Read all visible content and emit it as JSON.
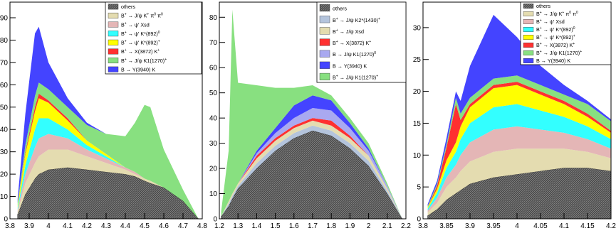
{
  "chart_data": [
    {
      "type": "area",
      "stacked": true,
      "grid": false,
      "legend_position": "top-right",
      "xlim": [
        3.8,
        4.8
      ],
      "ylim": [
        0,
        97
      ],
      "x_ticks": [
        "3.8",
        "3.9",
        "4",
        "4.1",
        "4.2",
        "4.3",
        "4.4",
        "4.5",
        "4.6",
        "4.7",
        "4.8"
      ],
      "y_ticks": [
        "0",
        "10",
        "20",
        "30",
        "40",
        "50",
        "60",
        "70",
        "80",
        "90"
      ],
      "x": [
        3.84,
        3.88,
        3.93,
        3.95,
        4.0,
        4.1,
        4.2,
        4.3,
        4.4,
        4.45,
        4.5,
        4.53,
        4.6,
        4.7,
        4.78
      ],
      "series": [
        {
          "name": "others",
          "color": "#555555",
          "values": [
            2,
            11,
            18,
            20,
            22,
            23,
            22,
            21,
            20,
            19,
            17,
            16,
            14,
            8,
            0
          ]
        },
        {
          "name": "B<sup>+</sup> → J/ψ K<sup>+</sup> π<sup>0</sup> π<sup>0</sup>",
          "color": "#e4dcb0",
          "values": [
            1,
            5,
            7,
            8,
            9,
            8,
            6,
            4,
            2,
            1,
            1,
            1,
            0,
            0,
            0
          ]
        },
        {
          "name": "B<sup>+</sup> → ψ' Xsd",
          "color": "#e4b6b6",
          "values": [
            1,
            4,
            7,
            8,
            7,
            5,
            3,
            2,
            1,
            1,
            0,
            0,
            0,
            0,
            0
          ]
        },
        {
          "name": "B<sup>+</sup> → ψ' K*(892)<sup>0</sup>",
          "color": "#33ffff",
          "values": [
            1,
            4,
            8,
            9,
            7,
            4,
            2,
            1,
            0,
            0,
            0,
            0,
            0,
            0,
            0
          ]
        },
        {
          "name": "B<sup>+</sup> → ψ' K*(892)<sup>+</sup>",
          "color": "#ffff00",
          "values": [
            1,
            5,
            8,
            9,
            7,
            4,
            2,
            1,
            0,
            0,
            0,
            0,
            0,
            0,
            0
          ]
        },
        {
          "name": "B<sup>+</sup> → X(3872) K<sup>+</sup>",
          "color": "#ff3030",
          "values": [
            0,
            1,
            2,
            2,
            1,
            1,
            0,
            0,
            0,
            0,
            0,
            0,
            0,
            0,
            0
          ]
        },
        {
          "name": "B<sup>+</sup> → J/ψ K1(1270)<sup>+</sup>",
          "color": "#88e080",
          "values": [
            1,
            3,
            5,
            5,
            5,
            5,
            7,
            9,
            14,
            22,
            33,
            33,
            17,
            5,
            0
          ]
        },
        {
          "name": "B → Y(3940) K",
          "color": "#4444ff",
          "values": [
            2,
            14,
            28,
            25,
            12,
            4,
            1,
            0,
            0,
            0,
            0,
            0,
            0,
            0,
            0
          ]
        }
      ]
    },
    {
      "type": "area",
      "stacked": true,
      "grid": false,
      "legend_position": "top-right",
      "xlim": [
        1.2,
        2.2
      ],
      "ylim": [
        0,
        86
      ],
      "x_ticks": [
        "1.2",
        "1.3",
        "1.4",
        "1.5",
        "1.6",
        "1.7",
        "1.8",
        "1.9",
        "2",
        "2.1",
        "2.2"
      ],
      "y_ticks": [
        "0",
        "10",
        "20",
        "30",
        "40",
        "50",
        "60",
        "70",
        "80"
      ],
      "x": [
        1.21,
        1.25,
        1.27,
        1.3,
        1.4,
        1.5,
        1.6,
        1.7,
        1.8,
        1.9,
        2.0,
        2.1,
        2.18
      ],
      "series": [
        {
          "name": "others",
          "color": "#555555",
          "values": [
            1,
            5,
            8,
            12,
            20,
            27,
            32,
            35,
            33,
            28,
            21,
            10,
            0
          ]
        },
        {
          "name": "B<sup>+</sup> → J/ψ K2*(1430)<sup>+</sup>",
          "color": "#b4c4dc",
          "values": [
            0,
            1,
            1,
            1,
            2,
            2,
            2,
            2,
            2,
            2,
            2,
            1,
            0
          ]
        },
        {
          "name": "B<sup>+</sup> → J/ψ Xsd",
          "color": "#e4dcb0",
          "values": [
            0,
            1,
            1,
            1,
            2,
            2,
            2,
            2,
            2,
            2,
            2,
            1,
            0
          ]
        },
        {
          "name": "B<sup>+</sup> → X(3872) K<sup>+</sup>",
          "color": "#ff3030",
          "values": [
            0,
            0,
            0,
            0,
            1,
            1,
            1,
            1,
            2,
            1,
            0,
            0,
            0
          ]
        },
        {
          "name": "B → J/ψ K1(1270)<sup>0</sup>",
          "color": "#a9a9f0",
          "values": [
            0,
            0,
            0,
            0,
            1,
            2,
            3,
            4,
            4,
            3,
            2,
            1,
            0
          ]
        },
        {
          "name": "B → Y(3940) K",
          "color": "#4444ff",
          "values": [
            0,
            0,
            0,
            0,
            1,
            2,
            5,
            5,
            4,
            2,
            1,
            0,
            0
          ]
        },
        {
          "name": "B<sup>+</sup> → J/ψ K1(1270)<sup>+</sup>",
          "color": "#88e080",
          "values": [
            2,
            20,
            73,
            40,
            26,
            16,
            7,
            4,
            2,
            2,
            2,
            1,
            0
          ]
        }
      ]
    },
    {
      "type": "area",
      "stacked": true,
      "grid": false,
      "legend_position": "top-right",
      "xlim": [
        3.8,
        4.2
      ],
      "ylim": [
        0,
        34
      ],
      "x_ticks": [
        "3.8",
        "3.85",
        "3.9",
        "3.95",
        "4",
        "4.05",
        "4.1",
        "4.15",
        "4.2"
      ],
      "y_ticks": [
        "0",
        "5",
        "10",
        "15",
        "20",
        "25",
        "30"
      ],
      "x": [
        3.81,
        3.83,
        3.85,
        3.87,
        3.88,
        3.9,
        3.95,
        4.0,
        4.05,
        4.1,
        4.15,
        4.2
      ],
      "series": [
        {
          "name": "others",
          "color": "#555555",
          "values": [
            0.5,
            1.5,
            3,
            4,
            4.5,
            5.5,
            6.5,
            7,
            7.5,
            8,
            8,
            7.5
          ]
        },
        {
          "name": "B<sup>+</sup> → J/ψ K<sup>+</sup> π<sup>0</sup> π<sup>0</sup>",
          "color": "#e4dcb0",
          "values": [
            0.5,
            1,
            2,
            2.5,
            3,
            3.5,
            4,
            4,
            3.5,
            3,
            2.5,
            2
          ]
        },
        {
          "name": "B<sup>+</sup> → ψ' Xsd",
          "color": "#e4b6b6",
          "values": [
            0.3,
            0.8,
            1.5,
            2,
            2.5,
            3,
            3.5,
            3.5,
            3,
            2.5,
            2,
            1.5
          ]
        },
        {
          "name": "B<sup>+</sup> → ψ' K*(892)<sup>0</sup>",
          "color": "#33ffff",
          "values": [
            0.3,
            0.8,
            1.5,
            2,
            2.5,
            3,
            3.5,
            3.5,
            3,
            2.5,
            2,
            1.5
          ]
        },
        {
          "name": "B<sup>+</sup> → ψ' K*(892)<sup>+</sup>",
          "color": "#ffff00",
          "values": [
            0.2,
            0.6,
            1.2,
            1.5,
            2,
            2.5,
            3,
            3,
            2.5,
            2,
            1.5,
            1
          ]
        },
        {
          "name": "B<sup>+</sup> → X(3872) K<sup>+</sup>",
          "color": "#ff3030",
          "values": [
            0,
            0.5,
            2,
            6,
            1,
            0.5,
            0.5,
            0.5,
            0.5,
            0.5,
            0.5,
            0.3
          ]
        },
        {
          "name": "B<sup>+</sup> → J/ψ K1(1270)<sup>+</sup>",
          "color": "#88e080",
          "values": [
            0.2,
            0.3,
            0.5,
            1,
            1,
            1,
            1,
            1,
            1,
            1,
            1.5,
            1.5
          ]
        },
        {
          "name": "B → Y(3940) K",
          "color": "#4444ff",
          "values": [
            0.3,
            0.5,
            1,
            1,
            2,
            5,
            10,
            6,
            3,
            1.5,
            0.5,
            0.3
          ]
        }
      ]
    }
  ]
}
